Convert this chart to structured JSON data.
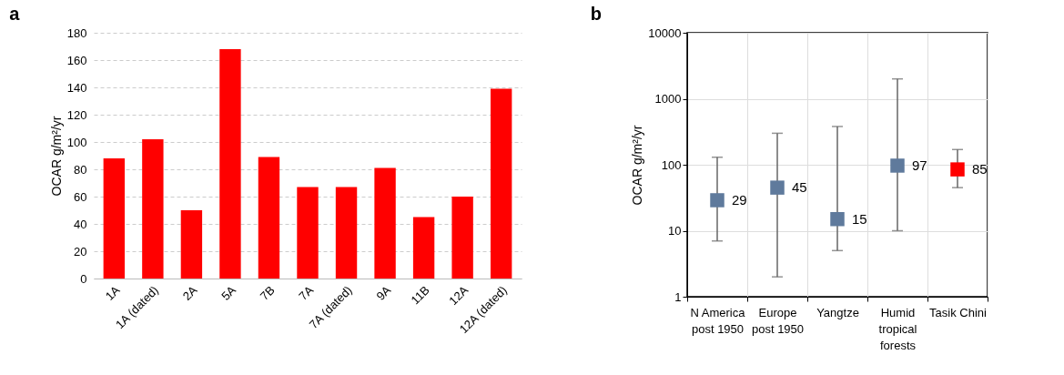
{
  "chart_data": [
    {
      "type": "bar",
      "title": "a",
      "ylabel": "OCAR g/m²/yr",
      "categories": [
        "1A",
        "1A (dated)",
        "2A",
        "5A",
        "7B",
        "7A",
        "7A (dated)",
        "9A",
        "11B",
        "12A",
        "12A (dated)"
      ],
      "values": [
        88,
        102,
        50,
        168,
        89,
        67,
        67,
        81,
        45,
        60,
        139
      ],
      "color": "#ff0000",
      "ylim": [
        0,
        180
      ],
      "yticks": [
        0,
        20,
        40,
        60,
        80,
        100,
        120,
        140,
        160,
        180
      ],
      "grid": "y",
      "line_style": "dashed"
    },
    {
      "type": "scatter",
      "title": "b",
      "ylabel": "OCAR g/m²/yr",
      "categories": [
        "N America\npost 1950",
        "Europe\npost 1950",
        "Yangtze",
        "Humid\ntropical\nforests",
        "Tasik Chini"
      ],
      "values": [
        29,
        45,
        15,
        97,
        85
      ],
      "colors": [
        "#5f7a9c",
        "#5f7a9c",
        "#5f7a9c",
        "#5f7a9c",
        "#ff0000"
      ],
      "errors": [
        [
          7,
          130
        ],
        [
          2,
          300
        ],
        [
          5,
          380
        ],
        [
          10,
          2000
        ],
        [
          45,
          170
        ]
      ],
      "marker": "square",
      "data_labels": true,
      "log": true,
      "ylim": [
        1,
        10000
      ],
      "yticks": [
        1,
        10,
        100,
        1000,
        10000
      ],
      "grid": true
    }
  ]
}
